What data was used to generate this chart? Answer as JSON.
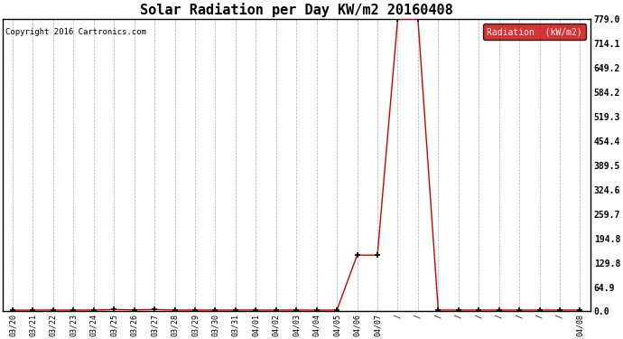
{
  "title": "Solar Radiation per Day KW/m2 20160408",
  "copyright": "Copyright 2016 Cartronics.com",
  "legend_label": "Radiation  (kW/m2)",
  "ylim": [
    0.0,
    779.0
  ],
  "yticks": [
    0.0,
    64.9,
    129.8,
    194.8,
    259.7,
    324.6,
    389.5,
    454.4,
    519.3,
    584.2,
    649.2,
    714.1,
    779.0
  ],
  "line_color": "#cc0000",
  "marker_color": "#000000",
  "bg_color": "#ffffff",
  "grid_color": "#aaaaaa",
  "x_labels": [
    "03/20",
    "03/21",
    "03/22",
    "03/23",
    "03/24",
    "03/25",
    "03/26",
    "03/27",
    "03/28",
    "03/29",
    "03/30",
    "03/31",
    "04/01",
    "04/02",
    "04/03",
    "04/04",
    "04/05",
    "04/06",
    "04/07",
    "/",
    "/",
    "/",
    "/",
    "/",
    "/",
    "/",
    "/",
    "/",
    "04/08"
  ],
  "y_values": [
    3.0,
    3.5,
    3.5,
    3.5,
    3.5,
    5.0,
    4.0,
    5.0,
    3.5,
    3.5,
    3.5,
    3.5,
    3.5,
    3.5,
    3.5,
    3.5,
    3.5,
    150.0,
    150.0,
    779.0,
    779.0,
    3.5,
    3.5,
    3.5,
    3.5,
    3.5,
    3.5,
    3.5,
    3.5
  ],
  "figwidth": 6.9,
  "figheight": 3.75,
  "dpi": 100
}
